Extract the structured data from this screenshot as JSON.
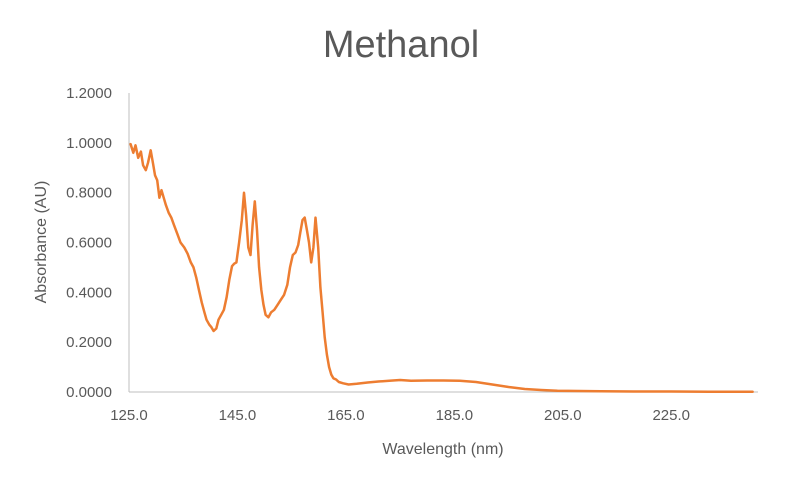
{
  "chart_data": {
    "type": "line",
    "title": "Methanol",
    "xlabel": "Wavelength (nm)",
    "ylabel": "Absorbance (AU)",
    "xlim": [
      125,
      241
    ],
    "ylim": [
      0,
      1.2
    ],
    "x_ticks": [
      125,
      145,
      165,
      185,
      205,
      225
    ],
    "x_tick_labels": [
      "125.0",
      "145.0",
      "165.0",
      "185.0",
      "205.0",
      "225.0"
    ],
    "y_ticks": [
      0,
      0.2,
      0.4,
      0.6,
      0.8,
      1.0,
      1.2
    ],
    "y_tick_labels": [
      "0.0000",
      "0.2000",
      "0.4000",
      "0.6000",
      "0.8000",
      "1.0000",
      "1.2000"
    ],
    "grid": false,
    "legend": "none",
    "color": "#ED7D31",
    "series": [
      {
        "x": [
          125.3,
          125.8,
          126.2,
          126.7,
          127.2,
          127.6,
          128.1,
          128.5,
          129.0,
          129.4,
          129.8,
          130.2,
          130.6,
          131.0,
          131.4,
          131.8,
          132.3,
          132.8,
          133.3,
          133.9,
          134.5,
          135.2,
          135.8,
          136.4,
          136.9,
          137.4,
          137.9,
          138.4,
          138.9,
          139.3,
          139.8,
          140.2,
          140.6,
          141.1,
          141.5,
          142.0,
          142.5,
          143.0,
          143.5,
          144.0,
          144.4,
          144.8,
          145.3,
          145.8,
          146.2,
          146.6,
          147.0,
          147.4,
          147.8,
          148.2,
          148.6,
          149.0,
          149.4,
          149.8,
          150.2,
          150.7,
          151.2,
          151.8,
          152.4,
          153.0,
          153.6,
          154.2,
          154.7,
          155.2,
          155.7,
          156.2,
          156.6,
          157.0,
          157.4,
          157.8,
          158.2,
          158.6,
          159.0,
          159.4,
          159.9,
          160.3,
          160.7,
          161.1,
          161.5,
          161.9,
          162.3,
          162.7,
          163.2,
          163.7,
          164.5,
          165.5,
          167.0,
          169.0,
          171.0,
          173.0,
          175.0,
          177.0,
          180.0,
          183.0,
          186.0,
          189.0,
          192.0,
          195.0,
          198.0,
          201.0,
          204.0,
          208.0,
          212.0,
          218.0,
          225.0,
          232.0,
          240.0
        ],
        "y": [
          0.995,
          0.96,
          0.99,
          0.94,
          0.965,
          0.91,
          0.89,
          0.92,
          0.97,
          0.92,
          0.87,
          0.85,
          0.78,
          0.81,
          0.78,
          0.75,
          0.72,
          0.7,
          0.67,
          0.635,
          0.6,
          0.58,
          0.555,
          0.52,
          0.5,
          0.46,
          0.41,
          0.36,
          0.32,
          0.29,
          0.27,
          0.26,
          0.245,
          0.255,
          0.29,
          0.31,
          0.33,
          0.38,
          0.45,
          0.505,
          0.515,
          0.52,
          0.6,
          0.69,
          0.8,
          0.71,
          0.58,
          0.55,
          0.67,
          0.765,
          0.65,
          0.5,
          0.41,
          0.35,
          0.31,
          0.3,
          0.32,
          0.33,
          0.35,
          0.37,
          0.39,
          0.43,
          0.5,
          0.55,
          0.56,
          0.59,
          0.64,
          0.69,
          0.7,
          0.65,
          0.6,
          0.52,
          0.58,
          0.7,
          0.58,
          0.42,
          0.32,
          0.22,
          0.15,
          0.1,
          0.07,
          0.055,
          0.05,
          0.04,
          0.035,
          0.03,
          0.033,
          0.038,
          0.042,
          0.045,
          0.048,
          0.045,
          0.046,
          0.046,
          0.045,
          0.04,
          0.03,
          0.02,
          0.012,
          0.008,
          0.005,
          0.004,
          0.003,
          0.002,
          0.002,
          0.001,
          0.001
        ]
      }
    ]
  }
}
